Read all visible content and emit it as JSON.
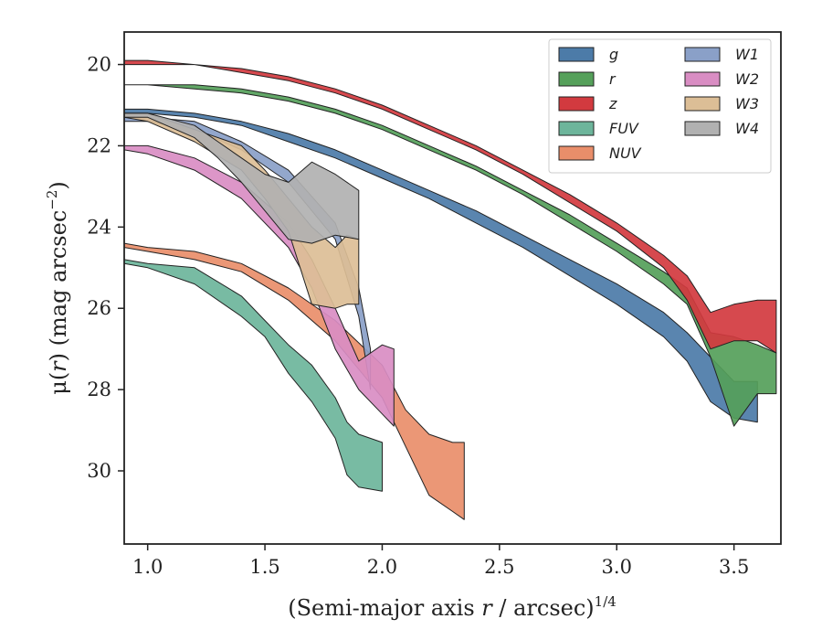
{
  "chart_data": {
    "type": "area",
    "xlabel_prefix": "(Semi-major axis ",
    "xlabel_var": "r",
    "xlabel_mid": " / arcsec)",
    "xlabel_sup": "1/4",
    "ylabel_prefix": "μ(",
    "ylabel_var": "r",
    "ylabel_mid": ") (mag arcsec",
    "ylabel_sup": "−2",
    "ylabel_suffix": ")",
    "xlim": [
      0.9,
      3.7
    ],
    "ylim": [
      31.8,
      19.2
    ],
    "y_inverted": true,
    "xticks": [
      "1.0",
      "1.5",
      "2.0",
      "2.5",
      "3.0",
      "3.5"
    ],
    "yticks": [
      "20",
      "22",
      "24",
      "26",
      "28",
      "30"
    ],
    "grid": false,
    "legend": {
      "placement": "top-right",
      "columns": 2
    },
    "series": [
      {
        "name": "g",
        "color": "#4c7ba8",
        "x": [
          0.9,
          1.0,
          1.2,
          1.4,
          1.6,
          1.8,
          2.0,
          2.2,
          2.4,
          2.6,
          2.8,
          3.0,
          3.2,
          3.3,
          3.4,
          3.5,
          3.6
        ],
        "top": [
          21.1,
          21.1,
          21.2,
          21.4,
          21.7,
          22.1,
          22.6,
          23.1,
          23.6,
          24.2,
          24.8,
          25.4,
          26.1,
          26.6,
          27.2,
          27.8,
          27.8
        ],
        "bot": [
          21.2,
          21.2,
          21.3,
          21.5,
          21.9,
          22.3,
          22.8,
          23.3,
          23.9,
          24.5,
          25.2,
          25.9,
          26.7,
          27.3,
          28.3,
          28.7,
          28.8
        ]
      },
      {
        "name": "r",
        "color": "#55a05a",
        "x": [
          0.9,
          1.0,
          1.2,
          1.4,
          1.6,
          1.8,
          2.0,
          2.2,
          2.4,
          2.6,
          2.8,
          3.0,
          3.2,
          3.3,
          3.4,
          3.5,
          3.6,
          3.68
        ],
        "top": [
          20.5,
          20.5,
          20.5,
          20.6,
          20.8,
          21.1,
          21.5,
          22.0,
          22.5,
          23.1,
          23.7,
          24.4,
          25.1,
          25.5,
          26.6,
          26.7,
          26.9,
          27.1
        ],
        "bot": [
          20.5,
          20.5,
          20.6,
          20.7,
          20.9,
          21.2,
          21.6,
          22.1,
          22.6,
          23.2,
          23.9,
          24.6,
          25.4,
          25.9,
          27.2,
          28.9,
          28.1,
          28.1
        ]
      },
      {
        "name": "z",
        "color": "#d23a3f",
        "x": [
          0.9,
          1.0,
          1.2,
          1.4,
          1.6,
          1.8,
          2.0,
          2.2,
          2.4,
          2.6,
          2.8,
          3.0,
          3.2,
          3.3,
          3.4,
          3.5,
          3.6,
          3.68
        ],
        "top": [
          19.9,
          19.9,
          20.0,
          20.1,
          20.3,
          20.6,
          21.0,
          21.5,
          22.0,
          22.6,
          23.2,
          23.9,
          24.7,
          25.2,
          26.1,
          25.9,
          25.8,
          25.8
        ],
        "bot": [
          20.0,
          20.0,
          20.0,
          20.2,
          20.4,
          20.7,
          21.1,
          21.6,
          22.1,
          22.7,
          23.4,
          24.1,
          25.0,
          25.8,
          27.0,
          26.8,
          26.8,
          27.1
        ]
      },
      {
        "name": "FUV",
        "color": "#6db59b",
        "x": [
          0.9,
          1.0,
          1.2,
          1.4,
          1.5,
          1.6,
          1.7,
          1.8,
          1.85,
          1.9,
          2.0
        ],
        "top": [
          24.8,
          24.9,
          25.0,
          25.7,
          26.3,
          26.9,
          27.4,
          28.2,
          28.8,
          29.1,
          29.3
        ],
        "bot": [
          24.9,
          25.0,
          25.4,
          26.2,
          26.7,
          27.6,
          28.3,
          29.2,
          30.1,
          30.4,
          30.5
        ]
      },
      {
        "name": "NUV",
        "color": "#e98e6a",
        "x": [
          0.9,
          1.0,
          1.2,
          1.4,
          1.6,
          1.8,
          2.0,
          2.1,
          2.2,
          2.3,
          2.35
        ],
        "top": [
          24.4,
          24.5,
          24.6,
          24.9,
          25.5,
          26.3,
          27.4,
          28.5,
          29.1,
          29.3,
          29.3
        ],
        "bot": [
          24.5,
          24.6,
          24.8,
          25.1,
          25.8,
          26.8,
          28.2,
          29.4,
          30.6,
          31.0,
          31.2
        ]
      },
      {
        "name": "W1",
        "color": "#8aa0c8",
        "x": [
          0.9,
          1.0,
          1.2,
          1.4,
          1.6,
          1.8,
          1.9,
          1.95
        ],
        "top": [
          21.3,
          21.3,
          21.4,
          21.9,
          22.6,
          23.9,
          25.5,
          27.0
        ],
        "bot": [
          21.4,
          21.4,
          21.6,
          22.1,
          22.9,
          24.3,
          26.2,
          28.0
        ]
      },
      {
        "name": "W2",
        "color": "#d98dc3",
        "x": [
          0.9,
          1.0,
          1.2,
          1.4,
          1.6,
          1.7,
          1.8,
          1.9,
          2.0,
          2.05
        ],
        "top": [
          22.0,
          22.0,
          22.3,
          22.9,
          23.9,
          24.8,
          26.0,
          27.3,
          26.9,
          27.0
        ],
        "bot": [
          22.1,
          22.2,
          22.6,
          23.3,
          24.5,
          25.5,
          27.0,
          28.0,
          28.6,
          28.9
        ]
      },
      {
        "name": "W3",
        "color": "#dcbe96",
        "x": [
          0.9,
          1.0,
          1.2,
          1.4,
          1.5,
          1.6,
          1.7,
          1.8,
          1.85,
          1.9
        ],
        "top": [
          21.2,
          21.2,
          21.6,
          22.0,
          22.6,
          23.3,
          24.0,
          24.5,
          24.2,
          24.3
        ],
        "bot": [
          21.3,
          21.4,
          21.9,
          22.6,
          23.3,
          24.1,
          25.9,
          26.0,
          25.9,
          25.9
        ]
      },
      {
        "name": "W4",
        "color": "#b1b1b1",
        "x": [
          0.9,
          1.0,
          1.2,
          1.3,
          1.4,
          1.5,
          1.6,
          1.7,
          1.8,
          1.9
        ],
        "top": [
          21.2,
          21.2,
          21.5,
          21.9,
          22.3,
          22.7,
          22.9,
          22.4,
          22.7,
          23.1
        ],
        "bot": [
          21.3,
          21.3,
          21.8,
          22.3,
          22.9,
          23.6,
          24.3,
          24.4,
          24.2,
          24.3
        ]
      }
    ]
  }
}
